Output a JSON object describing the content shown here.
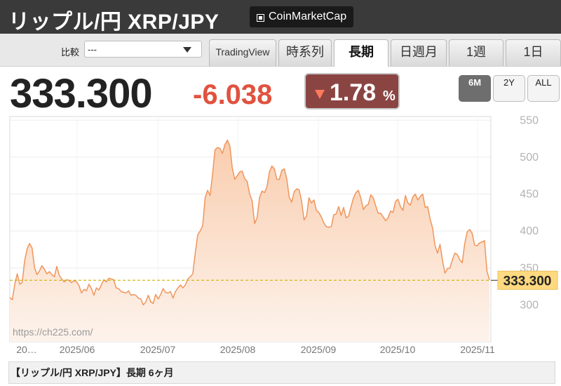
{
  "header": {
    "title": "リップル/円 XRP/JPY",
    "link_label": "CoinMarketCap",
    "link_icon": "external-link-icon"
  },
  "toolbar": {
    "compare_label": "比較",
    "compare_value": "---",
    "tabs": [
      {
        "label": "TradingView",
        "active": false
      },
      {
        "label": "時系列",
        "active": false
      },
      {
        "label": "長期",
        "active": true
      },
      {
        "label": "日週月",
        "active": false
      },
      {
        "label": "1週",
        "active": false
      },
      {
        "label": "1日",
        "active": false
      }
    ]
  },
  "quote": {
    "price": "333.300",
    "change": "-6.038",
    "percent": "1.78",
    "percent_unit": "%",
    "direction_icon": "down-triangle-icon"
  },
  "range_buttons": [
    {
      "label": "6M",
      "active": true
    },
    {
      "label": "2Y",
      "active": false
    },
    {
      "label": "ALL",
      "active": false
    }
  ],
  "colors": {
    "line": "#f0955b",
    "fill_top": "#f9cdae",
    "fill_bottom": "#fdf3ec",
    "current_line": "#c9b400",
    "current_label_bg": "#ffd980",
    "change": "#e0523f",
    "percent_box": "#8a4543"
  },
  "chart_data": {
    "type": "area",
    "x_tick_labels": [
      "20…",
      "2025/06",
      "2025/07",
      "2025/08",
      "2025/09",
      "2025/10",
      "2025/11"
    ],
    "y_ticks": [
      300,
      350,
      400,
      450,
      500,
      550
    ],
    "ylim": [
      250,
      555
    ],
    "grid": true,
    "watermark": "https://ch225.com/",
    "current_value": 333.3,
    "current_label": "333.300",
    "series": [
      {
        "values": [
          310,
          307,
          328,
          342,
          328,
          330,
          360,
          376,
          383,
          377,
          350,
          341,
          346,
          353,
          348,
          342,
          345,
          341,
          338,
          352,
          340,
          335,
          331,
          334,
          333,
          330,
          333,
          331,
          326,
          316,
          321,
          319,
          328,
          322,
          313,
          323,
          320,
          327,
          334,
          331,
          336,
          335,
          334,
          323,
          322,
          318,
          317,
          316,
          319,
          313,
          314,
          313,
          309,
          308,
          300,
          304,
          313,
          304,
          302,
          314,
          308,
          314,
          322,
          317,
          316,
          318,
          309,
          318,
          323,
          327,
          323,
          327,
          335,
          338,
          342,
          370,
          395,
          400,
          407,
          445,
          455,
          448,
          477,
          510,
          513,
          512,
          505,
          517,
          523,
          515,
          485,
          470,
          475,
          480,
          481,
          471,
          467,
          450,
          441,
          410,
          418,
          445,
          454,
          452,
          460,
          480,
          488,
          484,
          470,
          470,
          482,
          484,
          471,
          446,
          439,
          453,
          457,
          456,
          441,
          415,
          420,
          445,
          438,
          442,
          428,
          425,
          419,
          411,
          406,
          405,
          406,
          422,
          423,
          433,
          421,
          432,
          418,
          420,
          433,
          445,
          452,
          455,
          444,
          429,
          434,
          436,
          449,
          445,
          434,
          424,
          424,
          419,
          414,
          418,
          427,
          425,
          440,
          443,
          433,
          428,
          448,
          438,
          435,
          446,
          450,
          442,
          447,
          450,
          432,
          433,
          416,
          404,
          380,
          370,
          382,
          360,
          343,
          349,
          350,
          361,
          370,
          368,
          361,
          357,
          383,
          399,
          402,
          397,
          381,
          380,
          384,
          385,
          387,
          345,
          334
        ]
      }
    ]
  },
  "footer": {
    "caption": "【リップル/円 XRP/JPY】長期 6ヶ月"
  }
}
